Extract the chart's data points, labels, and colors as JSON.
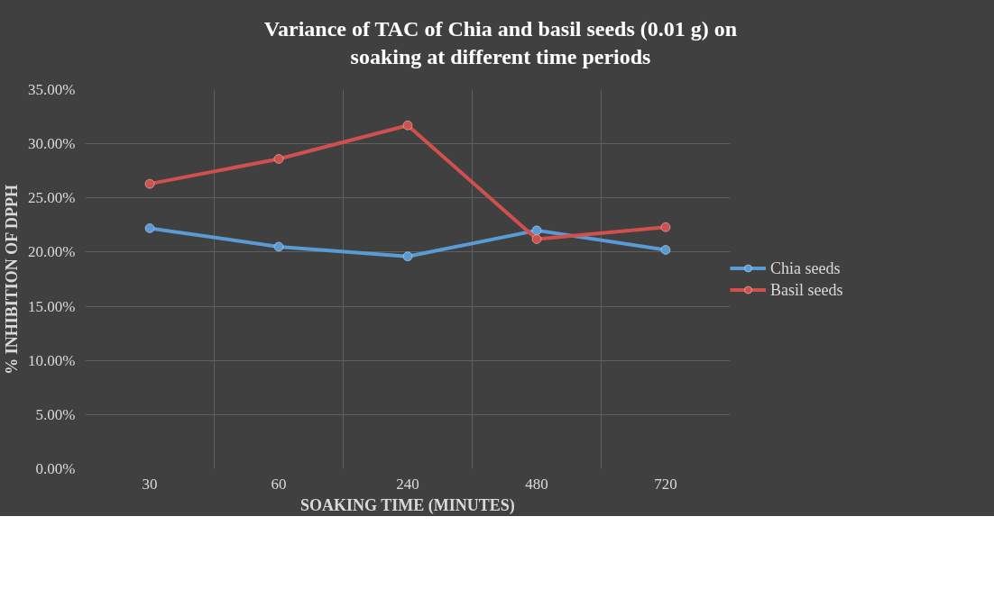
{
  "chart_data": {
    "type": "line",
    "title": "Variance of TAC of Chia and basil seeds (0.01 g) on soaking at different time periods",
    "xlabel": "SOAKING TIME (MINUTES)",
    "ylabel": "% INHIBITION OF DPPH",
    "categories": [
      "30",
      "60",
      "240",
      "480",
      "720"
    ],
    "series": [
      {
        "name": "Chia seeds",
        "color": "#5b9bd5",
        "values": [
          0.222,
          0.205,
          0.196,
          0.22,
          0.202
        ]
      },
      {
        "name": "Basil seeds",
        "color": "#d0504d",
        "values": [
          0.263,
          0.286,
          0.317,
          0.212,
          0.223
        ]
      }
    ],
    "ylim": [
      0,
      0.35
    ],
    "yticks": [
      {
        "value": 0,
        "label": "0.00%"
      },
      {
        "value": 0.05,
        "label": "5.00%"
      },
      {
        "value": 0.1,
        "label": "10.00%"
      },
      {
        "value": 0.15,
        "label": "15.00%"
      },
      {
        "value": 0.2,
        "label": "20.00%"
      },
      {
        "value": 0.25,
        "label": "25.00%"
      },
      {
        "value": 0.3,
        "label": "30.00%"
      },
      {
        "value": 0.35,
        "label": "35.00%"
      }
    ],
    "grid": true,
    "legend": "right",
    "marker": "circle",
    "line_style": "solid"
  }
}
